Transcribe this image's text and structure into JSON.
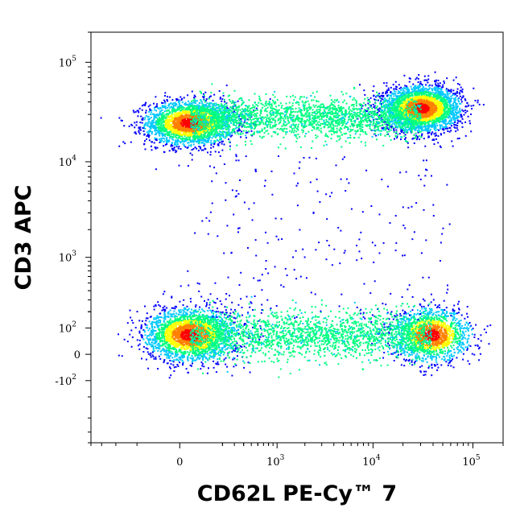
{
  "chart_data": {
    "type": "scatter",
    "subtype": "flow-cytometry-density-dot-plot",
    "xlabel": "CD62L PE-Cy™ 7",
    "ylabel": "CD3 APC",
    "x_scale": "biexponential",
    "y_scale": "biexponential",
    "xlim": [
      -800,
      200000
    ],
    "ylim": [
      -800,
      200000
    ],
    "x_ticks": [
      {
        "value": 0,
        "base": "0",
        "exp": ""
      },
      {
        "value": 1000,
        "base": "10",
        "exp": "3"
      },
      {
        "value": 10000,
        "base": "10",
        "exp": "4"
      },
      {
        "value": 100000,
        "base": "10",
        "exp": "5"
      }
    ],
    "y_ticks": [
      {
        "value": 100000,
        "base": "10",
        "exp": "5"
      },
      {
        "value": 10000,
        "base": "10",
        "exp": "4"
      },
      {
        "value": 1000,
        "base": "10",
        "exp": "3"
      },
      {
        "value": 100,
        "base": "10",
        "exp": "2"
      },
      {
        "value": 0,
        "base": "0",
        "exp": ""
      },
      {
        "value": -100,
        "base": "-10",
        "exp": "2"
      }
    ],
    "colormap": [
      "#0000ff",
      "#00c8ff",
      "#00ff80",
      "#ffff00",
      "#ff8000",
      "#ff0000"
    ],
    "populations": [
      {
        "name": "CD3+ CD62L-",
        "x_center": 30,
        "y_center": 25000,
        "density": "high"
      },
      {
        "name": "CD3+ CD62L+",
        "x_center": 30000,
        "y_center": 35000,
        "density": "very high"
      },
      {
        "name": "CD3- CD62L-",
        "x_center": 30,
        "y_center": 70,
        "density": "high"
      },
      {
        "name": "CD3- CD62L+",
        "x_center": 38000,
        "y_center": 70,
        "density": "medium"
      }
    ],
    "grid": false,
    "legend": "none"
  }
}
